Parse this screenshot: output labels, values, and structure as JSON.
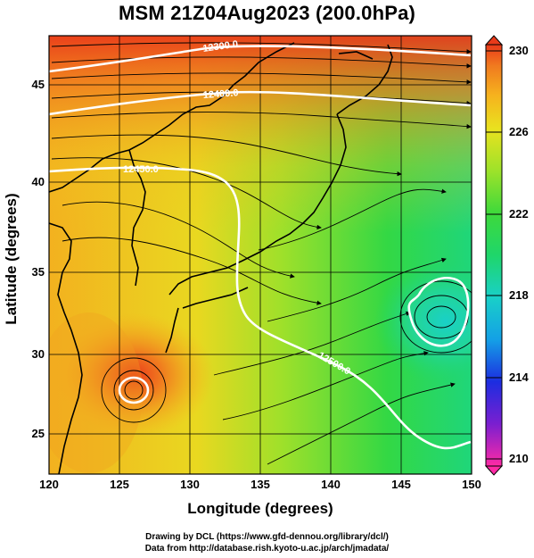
{
  "title": "MSM 21Z04Aug2023 (200.0hPa)",
  "x_axis": {
    "label": "Longitude (degrees)",
    "ticks": [
      "120",
      "125",
      "130",
      "135",
      "140",
      "145",
      "150"
    ]
  },
  "y_axis": {
    "label": "Latitude  (degrees)",
    "ticks": [
      "25",
      "30",
      "35",
      "40",
      "45"
    ]
  },
  "colorbar": {
    "ticks": [
      "230",
      "226",
      "222",
      "218",
      "214",
      "210"
    ],
    "colors": [
      "#ff2aa5",
      "#7a1fd0",
      "#1c2de0",
      "#14a0e6",
      "#19d0c8",
      "#1fd66a",
      "#3ed93b",
      "#9de22a",
      "#e9e21f",
      "#f6b21e",
      "#f07a1f",
      "#ea3a1a"
    ]
  },
  "contours": {
    "labels": [
      "12300.0",
      "12400.0",
      "12450.0",
      "12500.0"
    ],
    "color": "#ffffff"
  },
  "credits": {
    "line1": "Drawing by DCL (https://www.gfd-dennou.org/library/dcl/)",
    "line2": "Data from http://database.rish.kyoto-u.ac.jp/arch/jmadata/"
  }
}
